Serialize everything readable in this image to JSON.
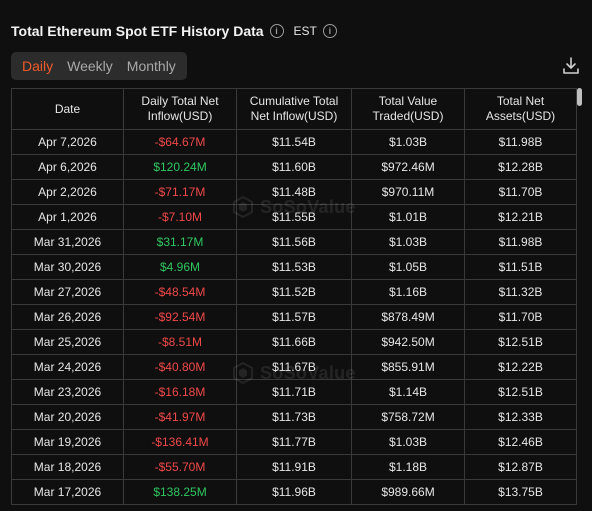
{
  "header": {
    "title": "Total Ethereum Spot ETF History Data",
    "timezone": "EST"
  },
  "tabs": [
    {
      "label": "Daily",
      "active": true
    },
    {
      "label": "Weekly",
      "active": false
    },
    {
      "label": "Monthly",
      "active": false
    }
  ],
  "watermark": "SoSoValue",
  "table": {
    "columns": [
      "Date",
      "Daily Total Net Inflow(USD)",
      "Cumulative Total Net Inflow(USD)",
      "Total Value Traded(USD)",
      "Total Net Assets(USD)"
    ],
    "rows": [
      {
        "date": "Apr 7,2026",
        "inflow": "-$64.67M",
        "sign": "neg",
        "cumulative": "$11.54B",
        "traded": "$1.03B",
        "assets": "$11.98B"
      },
      {
        "date": "Apr 6,2026",
        "inflow": "$120.24M",
        "sign": "pos",
        "cumulative": "$11.60B",
        "traded": "$972.46M",
        "assets": "$12.28B"
      },
      {
        "date": "Apr 2,2026",
        "inflow": "-$71.17M",
        "sign": "neg",
        "cumulative": "$11.48B",
        "traded": "$970.11M",
        "assets": "$11.70B"
      },
      {
        "date": "Apr 1,2026",
        "inflow": "-$7.10M",
        "sign": "neg",
        "cumulative": "$11.55B",
        "traded": "$1.01B",
        "assets": "$12.21B"
      },
      {
        "date": "Mar 31,2026",
        "inflow": "$31.17M",
        "sign": "pos",
        "cumulative": "$11.56B",
        "traded": "$1.03B",
        "assets": "$11.98B"
      },
      {
        "date": "Mar 30,2026",
        "inflow": "$4.96M",
        "sign": "pos",
        "cumulative": "$11.53B",
        "traded": "$1.05B",
        "assets": "$11.51B"
      },
      {
        "date": "Mar 27,2026",
        "inflow": "-$48.54M",
        "sign": "neg",
        "cumulative": "$11.52B",
        "traded": "$1.16B",
        "assets": "$11.32B"
      },
      {
        "date": "Mar 26,2026",
        "inflow": "-$92.54M",
        "sign": "neg",
        "cumulative": "$11.57B",
        "traded": "$878.49M",
        "assets": "$11.70B"
      },
      {
        "date": "Mar 25,2026",
        "inflow": "-$8.51M",
        "sign": "neg",
        "cumulative": "$11.66B",
        "traded": "$942.50M",
        "assets": "$12.51B"
      },
      {
        "date": "Mar 24,2026",
        "inflow": "-$40.80M",
        "sign": "neg",
        "cumulative": "$11.67B",
        "traded": "$855.91M",
        "assets": "$12.22B"
      },
      {
        "date": "Mar 23,2026",
        "inflow": "-$16.18M",
        "sign": "neg",
        "cumulative": "$11.71B",
        "traded": "$1.14B",
        "assets": "$12.51B"
      },
      {
        "date": "Mar 20,2026",
        "inflow": "-$41.97M",
        "sign": "neg",
        "cumulative": "$11.73B",
        "traded": "$758.72M",
        "assets": "$12.33B"
      },
      {
        "date": "Mar 19,2026",
        "inflow": "-$136.41M",
        "sign": "neg",
        "cumulative": "$11.77B",
        "traded": "$1.03B",
        "assets": "$12.46B"
      },
      {
        "date": "Mar 18,2026",
        "inflow": "-$55.70M",
        "sign": "neg",
        "cumulative": "$11.91B",
        "traded": "$1.18B",
        "assets": "$12.87B"
      },
      {
        "date": "Mar 17,2026",
        "inflow": "$138.25M",
        "sign": "pos",
        "cumulative": "$11.96B",
        "traded": "$989.66M",
        "assets": "$13.75B"
      }
    ]
  },
  "colors": {
    "accent": "#f05a2a",
    "positive": "#2fc65f",
    "negative": "#f04848",
    "background": "#0f0f0f"
  }
}
